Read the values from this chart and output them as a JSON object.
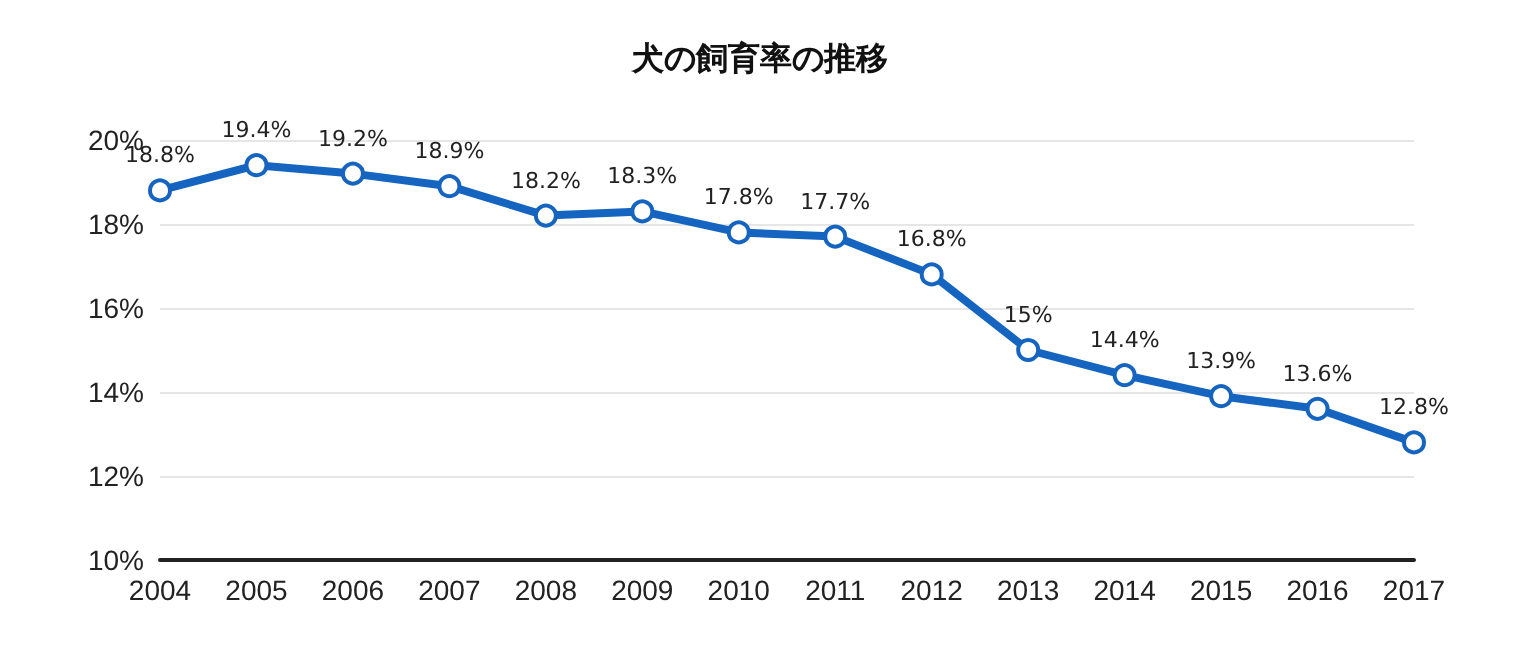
{
  "chart_data": {
    "type": "line",
    "title": "犬の飼育率の推移",
    "categories": [
      "2004",
      "2005",
      "2006",
      "2007",
      "2008",
      "2009",
      "2010",
      "2011",
      "2012",
      "2013",
      "2014",
      "2015",
      "2016",
      "2017"
    ],
    "series": [
      {
        "color": "#1565c0",
        "values": [
          18.8,
          19.4,
          19.2,
          18.9,
          18.2,
          18.3,
          17.8,
          17.7,
          16.8,
          15,
          14.4,
          13.9,
          13.6,
          12.8
        ],
        "value_labels": [
          "18.8%",
          "19.4%",
          "19.2%",
          "18.9%",
          "18.2%",
          "18.3%",
          "17.8%",
          "17.7%",
          "16.8%",
          "15%",
          "14.4%",
          "13.9%",
          "13.6%",
          "12.8%"
        ]
      }
    ],
    "ylim": [
      10,
      20
    ],
    "yticks": [
      {
        "value": 10,
        "label": "10%"
      },
      {
        "value": 12,
        "label": "12%"
      },
      {
        "value": 14,
        "label": "14%"
      },
      {
        "value": 16,
        "label": "16%"
      },
      {
        "value": 18,
        "label": "18%"
      },
      {
        "value": 20,
        "label": "20%"
      }
    ],
    "grid": "y",
    "marker": "circle",
    "line_style": "solid"
  }
}
